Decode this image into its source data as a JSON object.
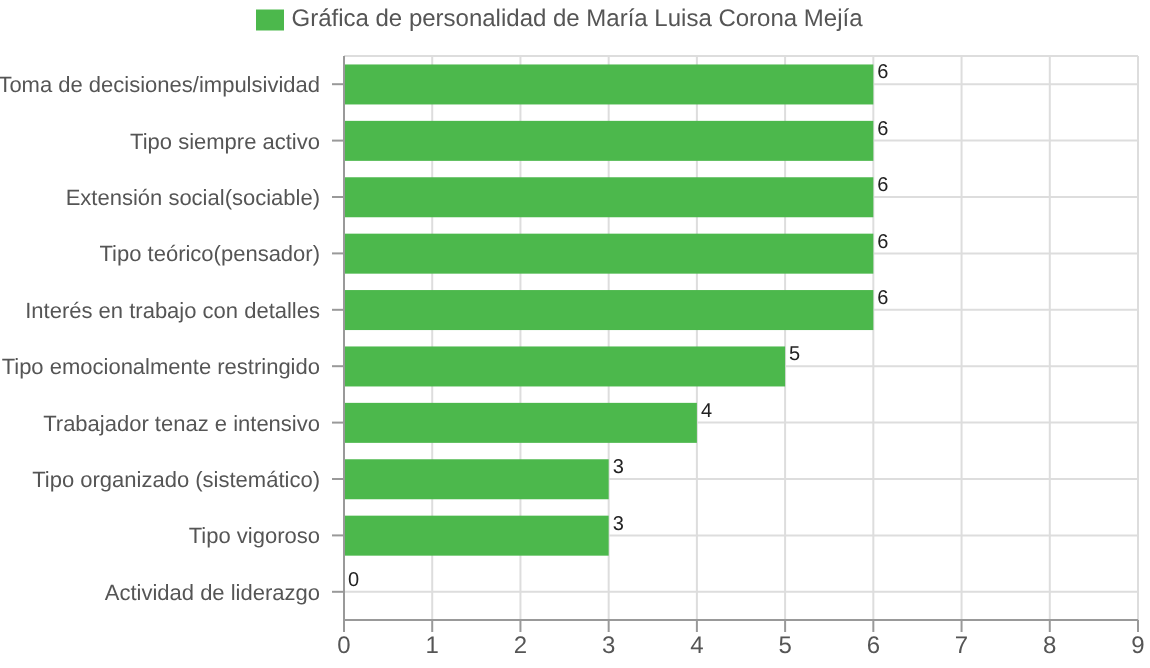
{
  "chart_data": {
    "type": "bar",
    "orientation": "horizontal",
    "categories": [
      "Toma de decisiones/impulsividad",
      "Tipo siempre activo",
      "Extensión social(sociable)",
      "Tipo teórico(pensador)",
      "Interés en trabajo con detalles",
      "Tipo emocionalmente restringido",
      "Trabajador tenaz e intensivo",
      "Tipo organizado (sistemático)",
      "Tipo vigoroso",
      "Actividad de liderazgo"
    ],
    "series": [
      {
        "name": "Gráfica de personalidad de María Luisa Corona Mejía",
        "color": "#4cb84c",
        "values": [
          6,
          6,
          6,
          6,
          6,
          5,
          4,
          3,
          3,
          0
        ]
      }
    ],
    "xlim": [
      0,
      9
    ],
    "xticks": [
      0,
      1,
      2,
      3,
      4,
      5,
      6,
      7,
      8,
      9
    ],
    "grid": true,
    "legend": "top",
    "data_labels": true
  }
}
